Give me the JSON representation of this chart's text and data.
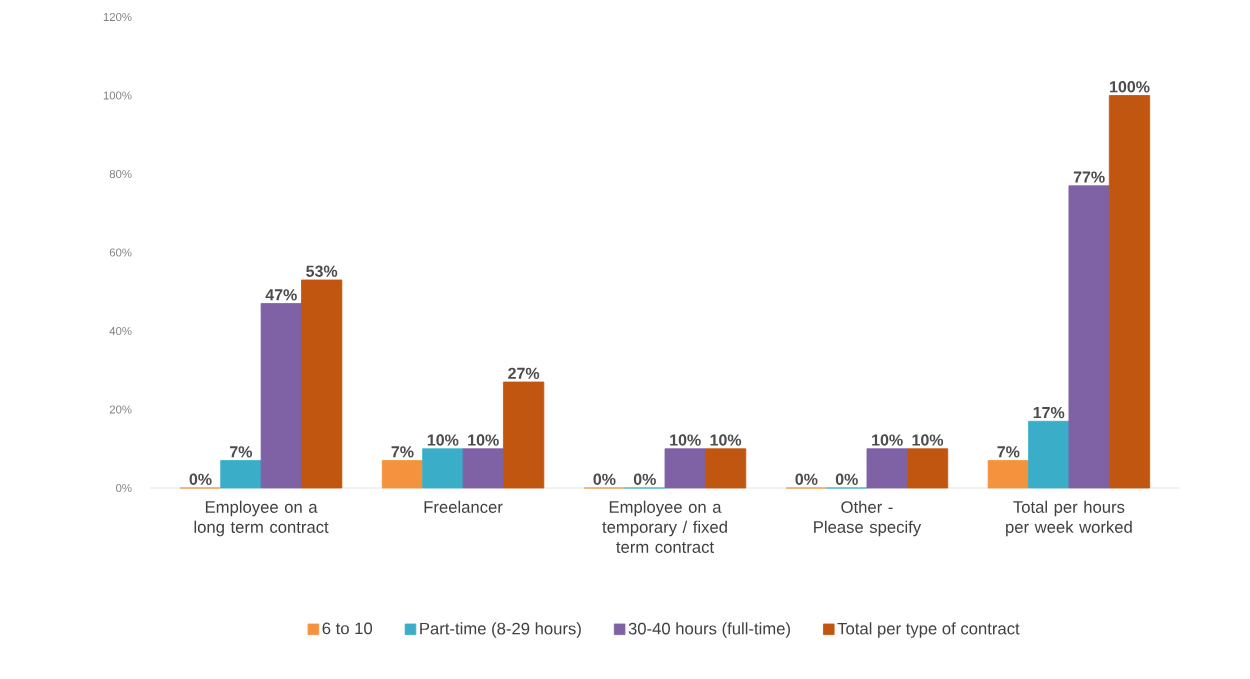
{
  "chart_data": {
    "type": "bar",
    "categories": [
      "Employee on a long term contract",
      "Freelancer",
      "Employee on a temporary / fixed term contract",
      "Other - Please specify",
      "Total per hours per week worked"
    ],
    "series": [
      {
        "name": "6 to 10",
        "color": "#f5923e",
        "values": [
          0,
          7,
          0,
          0,
          7
        ],
        "value_labels": [
          "0%",
          "7%",
          "0%",
          "0%",
          "7%"
        ]
      },
      {
        "name": "Part-time (8-29 hours)",
        "color": "#3aaec9",
        "values": [
          7,
          10,
          0,
          0,
          17
        ],
        "value_labels": [
          "7%",
          "10%",
          "0%",
          "0%",
          "17%"
        ]
      },
      {
        "name": "30-40 hours (full-time)",
        "color": "#7f62a5",
        "values": [
          47,
          10,
          10,
          10,
          77
        ],
        "value_labels": [
          "47%",
          "10%",
          "10%",
          "10%",
          "77%"
        ]
      },
      {
        "name": "Total per type of contract",
        "color": "#c0560f",
        "values": [
          53,
          27,
          10,
          10,
          100
        ],
        "value_labels": [
          "53%",
          "27%",
          "10%",
          "10%",
          "100%"
        ]
      }
    ],
    "ylim": [
      0,
      120
    ],
    "yticks": [
      {
        "value": 0,
        "label": "0%"
      },
      {
        "value": 20,
        "label": "20%"
      },
      {
        "value": 40,
        "label": "40%"
      },
      {
        "value": 60,
        "label": "60%"
      },
      {
        "value": 80,
        "label": "80%"
      },
      {
        "value": 100,
        "label": "100%"
      },
      {
        "value": 120,
        "label": "120%"
      }
    ],
    "legend": "bottom"
  }
}
